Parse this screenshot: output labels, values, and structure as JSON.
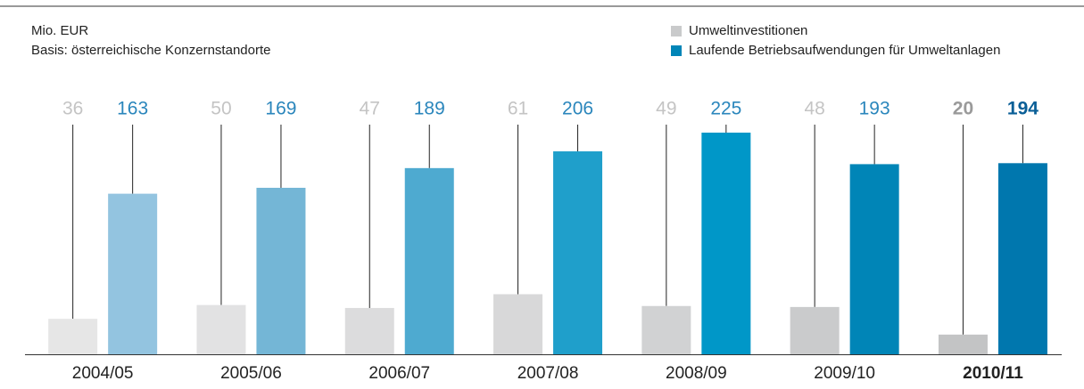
{
  "chart_data": {
    "type": "bar",
    "subtitle": [
      "Mio. EUR",
      "Basis: österreichische Konzernstandorte"
    ],
    "categories": [
      "2004/05",
      "2005/06",
      "2006/07",
      "2007/08",
      "2008/09",
      "2009/10",
      "2010/11"
    ],
    "highlight_category": 6,
    "legend": "top-right",
    "series": [
      {
        "name": "Umweltinvestitionen",
        "color": "#c9cacb",
        "colors": [
          "#e6e6e6",
          "#e2e2e3",
          "#dcdcdd",
          "#d8d8d9",
          "#d1d2d3",
          "#cacbcc",
          "#c3c4c5"
        ],
        "values": [
          36,
          50,
          47,
          61,
          49,
          48,
          20
        ]
      },
      {
        "name": "Laufende Betriebsaufwendungen für Umweltanlagen",
        "color": "#0085b7",
        "colors": [
          "#93c4e0",
          "#74b6d6",
          "#4eaad0",
          "#1f9fcb",
          "#0097c8",
          "#0085b7",
          "#0077ae"
        ],
        "values": [
          163,
          169,
          189,
          206,
          225,
          193,
          194
        ]
      }
    ]
  }
}
